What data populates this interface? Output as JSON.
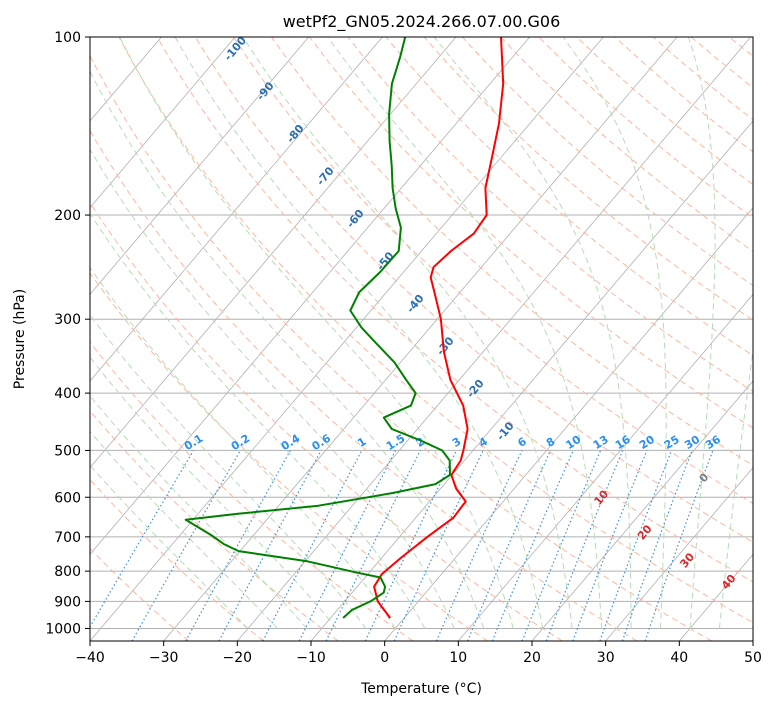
{
  "chart_data": {
    "type": "line",
    "title": "wetPf2_GN05.2024.266.07.00.G06",
    "xlabel": "Temperature (°C)",
    "ylabel": "Pressure (hPa)",
    "xlim": [
      -40,
      50
    ],
    "ylim": [
      1050,
      100
    ],
    "y_scale": "log",
    "x_ticks": [
      "−40",
      "−30",
      "−20",
      "−10",
      "0",
      "10",
      "20",
      "30",
      "40",
      "50"
    ],
    "y_ticks": [
      "100",
      "200",
      "300",
      "400",
      "500",
      "600",
      "700",
      "800",
      "900",
      "1000"
    ],
    "grid": true,
    "series": [
      {
        "color": "#ff0000",
        "points": [
          {
            "p": 960,
            "t": -1.9
          },
          {
            "p": 900,
            "t": -5.5
          },
          {
            "p": 850,
            "t": -7.7
          },
          {
            "p": 810,
            "t": -8.1
          },
          {
            "p": 760,
            "t": -7.4
          },
          {
            "p": 700,
            "t": -6.2
          },
          {
            "p": 650,
            "t": -4.9
          },
          {
            "p": 610,
            "t": -5.1
          },
          {
            "p": 580,
            "t": -7.9
          },
          {
            "p": 550,
            "t": -10.1
          },
          {
            "p": 520,
            "t": -10.5
          },
          {
            "p": 500,
            "t": -11.3
          },
          {
            "p": 460,
            "t": -13.2
          },
          {
            "p": 420,
            "t": -16.5
          },
          {
            "p": 380,
            "t": -21.2
          },
          {
            "p": 340,
            "t": -25.4
          },
          {
            "p": 300,
            "t": -29.5
          },
          {
            "p": 270,
            "t": -33.5
          },
          {
            "p": 255,
            "t": -35.7
          },
          {
            "p": 245,
            "t": -36.5
          },
          {
            "p": 230,
            "t": -36.0
          },
          {
            "p": 215,
            "t": -34.9
          },
          {
            "p": 200,
            "t": -35.3
          },
          {
            "p": 180,
            "t": -38.6
          },
          {
            "p": 160,
            "t": -41.2
          },
          {
            "p": 140,
            "t": -44.2
          },
          {
            "p": 120,
            "t": -48.2
          },
          {
            "p": 100,
            "t": -53.9
          }
        ]
      },
      {
        "color": "#008000",
        "points": [
          {
            "p": 960,
            "t": -8.3
          },
          {
            "p": 930,
            "t": -8.0
          },
          {
            "p": 900,
            "t": -6.5
          },
          {
            "p": 870,
            "t": -5.7
          },
          {
            "p": 850,
            "t": -6.2
          },
          {
            "p": 820,
            "t": -7.9
          },
          {
            "p": 805,
            "t": -11.6
          },
          {
            "p": 770,
            "t": -19.7
          },
          {
            "p": 750,
            "t": -26.6
          },
          {
            "p": 740,
            "t": -30.2
          },
          {
            "p": 720,
            "t": -33.0
          },
          {
            "p": 695,
            "t": -35.8
          },
          {
            "p": 670,
            "t": -39.0
          },
          {
            "p": 655,
            "t": -41.0
          },
          {
            "p": 640,
            "t": -34.6
          },
          {
            "p": 620,
            "t": -24.6
          },
          {
            "p": 590,
            "t": -15.9
          },
          {
            "p": 570,
            "t": -11.2
          },
          {
            "p": 550,
            "t": -10.3
          },
          {
            "p": 520,
            "t": -12.0
          },
          {
            "p": 500,
            "t": -14.2
          },
          {
            "p": 480,
            "t": -18.5
          },
          {
            "p": 460,
            "t": -23.5
          },
          {
            "p": 440,
            "t": -25.9
          },
          {
            "p": 420,
            "t": -23.6
          },
          {
            "p": 400,
            "t": -24.4
          },
          {
            "p": 380,
            "t": -27.2
          },
          {
            "p": 355,
            "t": -30.8
          },
          {
            "p": 330,
            "t": -35.4
          },
          {
            "p": 310,
            "t": -39.3
          },
          {
            "p": 290,
            "t": -42.8
          },
          {
            "p": 270,
            "t": -43.7
          },
          {
            "p": 250,
            "t": -43.2
          },
          {
            "p": 230,
            "t": -43.1
          },
          {
            "p": 210,
            "t": -45.5
          },
          {
            "p": 195,
            "t": -48.4
          },
          {
            "p": 180,
            "t": -51.2
          },
          {
            "p": 165,
            "t": -53.9
          },
          {
            "p": 150,
            "t": -57.0
          },
          {
            "p": 135,
            "t": -60.2
          },
          {
            "p": 120,
            "t": -63.3
          },
          {
            "p": 108,
            "t": -65.3
          },
          {
            "p": 100,
            "t": -66.9
          }
        ]
      }
    ],
    "dry_adiabat_labels": [
      "-100",
      "-90",
      "-80",
      "-70",
      "-60",
      "-50",
      "-40",
      "-30",
      "-20",
      "-10",
      "0",
      "10",
      "20",
      "30",
      "40"
    ],
    "mixing_ratio_labels": [
      "0.1",
      "0.2",
      "0.4",
      "0.6",
      "1",
      "1.5",
      "2",
      "3",
      "4",
      "6",
      "8",
      "10",
      "13",
      "16",
      "20",
      "25",
      "30",
      "36"
    ],
    "colors": {
      "temperature": "#ff0000",
      "dewpoint": "#008000",
      "isotherm": "#b0b0b0",
      "isobar": "#b0b0b0",
      "dry_adiabat": "#ffb69e",
      "moist_adiabat": "#b6dcb6",
      "mixing_ratio": "#3d8fe0",
      "neg_adiabat_label": "#2b6fb0",
      "pos_adiabat_label": "#d42a2a",
      "zero_adiabat_label": "#808080",
      "mixing_label": "#2a8ff0"
    }
  }
}
